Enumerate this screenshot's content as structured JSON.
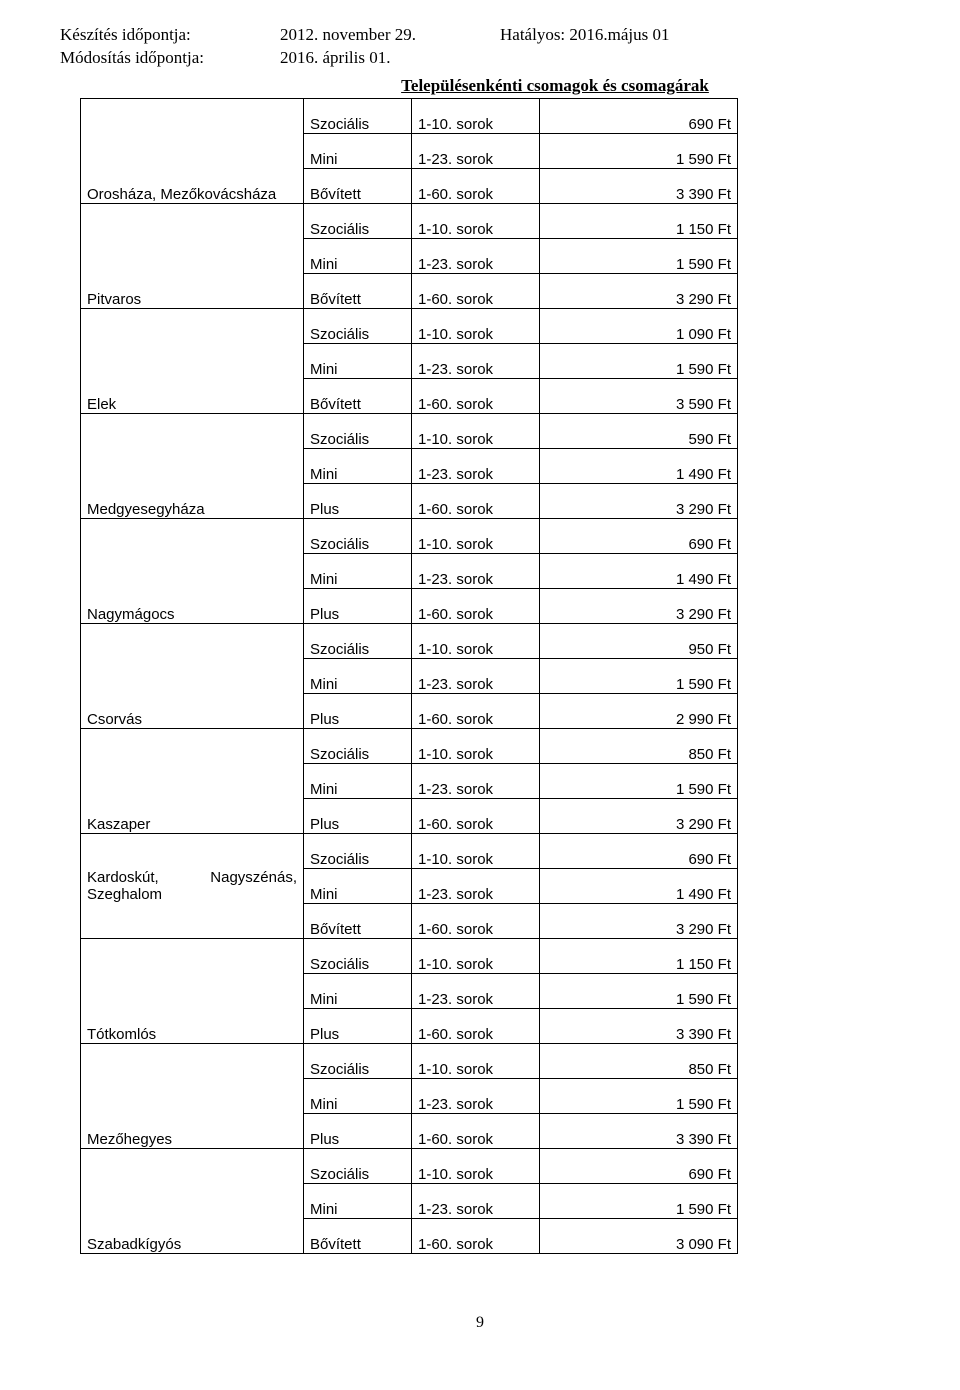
{
  "header": {
    "created_label": "Készítés időpontja:",
    "created_value": "2012. november 29.",
    "effective_label": "Hatályos: 2016.május  01",
    "modified_label": "Módosítás időpontja:",
    "modified_value": "2016. április 01."
  },
  "table_title": "Településenkénti csomagok és csomagárak",
  "row_label_1_10": "1-10. sorok",
  "row_label_1_23": "1-23. sorok",
  "row_label_1_60": "1-60. sorok",
  "tier_szocialis": "Szociális",
  "tier_mini": "Mini",
  "tier_bovitett": "Bővített",
  "tier_plus": "Plus",
  "places": [
    {
      "name": "Orosháza, Mezőkovácsháza",
      "tiers": [
        "Szociális",
        "Mini",
        "Bővített"
      ],
      "prices": [
        "690 Ft",
        "1 590 Ft",
        "3 390 Ft"
      ]
    },
    {
      "name": "Pitvaros",
      "tiers": [
        "Szociális",
        "Mini",
        "Bővített"
      ],
      "prices": [
        "1 150 Ft",
        "1 590 Ft",
        "3 290 Ft"
      ]
    },
    {
      "name": "Elek",
      "tiers": [
        "Szociális",
        "Mini",
        "Bővített"
      ],
      "prices": [
        "1 090 Ft",
        "1 590 Ft",
        "3 590 Ft"
      ]
    },
    {
      "name": "Medgyesegyháza",
      "tiers": [
        "Szociális",
        "Mini",
        "Plus"
      ],
      "prices": [
        "590 Ft",
        "1 490 Ft",
        "3 290 Ft"
      ]
    },
    {
      "name": "Nagymágocs",
      "tiers": [
        "Szociális",
        "Mini",
        "Plus"
      ],
      "prices": [
        "690 Ft",
        "1 490 Ft",
        "3 290 Ft"
      ]
    },
    {
      "name": "Csorvás",
      "tiers": [
        "Szociális",
        "Mini",
        "Plus"
      ],
      "prices": [
        "950 Ft",
        "1 590 Ft",
        "2 990 Ft"
      ]
    },
    {
      "name": "Kaszaper",
      "tiers": [
        "Szociális",
        "Mini",
        "Plus"
      ],
      "prices": [
        "850 Ft",
        "1 590 Ft",
        "3 290 Ft"
      ]
    },
    {
      "name": "Kardoskút, Nagyszénás, Szeghalom",
      "special": "karodskut",
      "tiers": [
        "Szociális",
        "Mini",
        "Bővített"
      ],
      "prices": [
        "690 Ft",
        "1 490 Ft",
        "3 290 Ft"
      ]
    },
    {
      "name": "Tótkomlós",
      "tiers": [
        "Szociális",
        "Mini",
        "Plus"
      ],
      "prices": [
        "1 150 Ft",
        "1 590 Ft",
        "3 390 Ft"
      ]
    },
    {
      "name": "Mezőhegyes",
      "tiers": [
        "Szociális",
        "Mini",
        "Plus"
      ],
      "prices": [
        "850 Ft",
        "1 590 Ft",
        "3 390 Ft"
      ]
    },
    {
      "name": "Szabadkígyós",
      "tiers": [
        "Szociális",
        "Mini",
        "Bővített"
      ],
      "prices": [
        "690 Ft",
        "1 590 Ft",
        "3 090 Ft"
      ]
    }
  ],
  "page_number": "9"
}
